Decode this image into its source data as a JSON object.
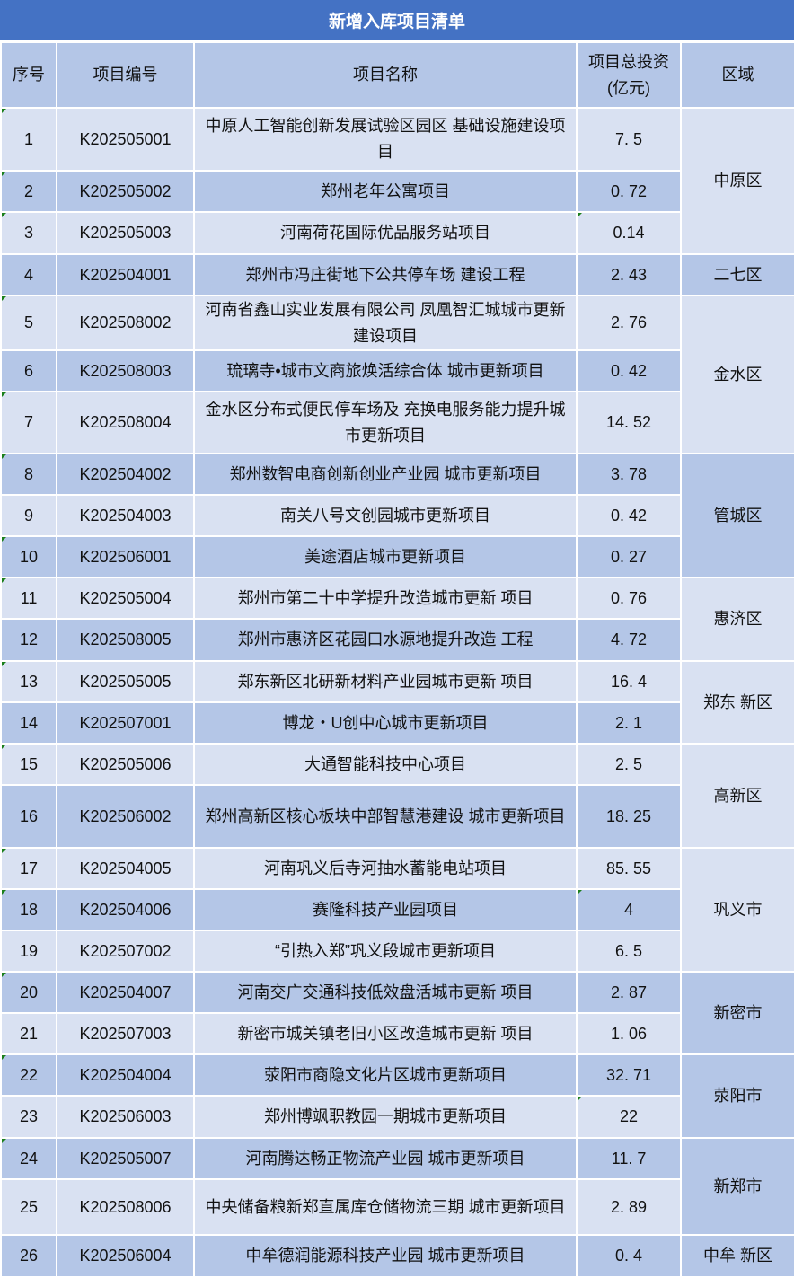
{
  "title": "新增入库项目清单",
  "headers": [
    "序号",
    "项目编号",
    "项目名称",
    "项目总投资\n(亿元)",
    "区域"
  ],
  "header_invest_line1": "项目总投资",
  "header_invest_line2": "(亿元)",
  "colors": {
    "title_bg": "#4472C4",
    "dark_row": "#B4C6E7",
    "light_row": "#D9E1F2"
  },
  "rows": [
    {
      "no": "1",
      "code": "K202505001",
      "name": "中原人工智能创新发展试验区园区 基础设施建设项目",
      "invest": "7. 5"
    },
    {
      "no": "2",
      "code": "K202505002",
      "name": "郑州老年公寓项目",
      "invest": "0. 72"
    },
    {
      "no": "3",
      "code": "K202505003",
      "name": "河南荷花国际优品服务站项目",
      "invest": "0.14"
    },
    {
      "no": "4",
      "code": "K202504001",
      "name": "郑州市冯庄街地下公共停车场 建设工程",
      "invest": "2. 43"
    },
    {
      "no": "5",
      "code": "K202508002",
      "name": "河南省鑫山实业发展有限公司 凤凰智汇城城市更新建设项目",
      "invest": "2. 76"
    },
    {
      "no": "6",
      "code": "K202508003",
      "name": "琉璃寺•城市文商旅焕活综合体 城市更新项目",
      "invest": "0. 42"
    },
    {
      "no": "7",
      "code": "K202508004",
      "name": "金水区分布式便民停车场及 充换电服务能力提升城市更新项目",
      "invest": "14. 52"
    },
    {
      "no": "8",
      "code": "K202504002",
      "name": "郑州数智电商创新创业产业园 城市更新项目",
      "invest": "3. 78"
    },
    {
      "no": "9",
      "code": "K202504003",
      "name": "南关八号文创园城市更新项目",
      "invest": "0. 42"
    },
    {
      "no": "10",
      "code": "K202506001",
      "name": "美途酒店城市更新项目",
      "invest": "0. 27"
    },
    {
      "no": "11",
      "code": "K202505004",
      "name": "郑州市第二十中学提升改造城市更新 项目",
      "invest": "0. 76"
    },
    {
      "no": "12",
      "code": "K202508005",
      "name": "郑州市惠济区花园口水源地提升改造 工程",
      "invest": "4. 72"
    },
    {
      "no": "13",
      "code": "K202505005",
      "name": "郑东新区北研新材料产业园城市更新 项目",
      "invest": "16. 4"
    },
    {
      "no": "14",
      "code": "K202507001",
      "name": "博龙・U创中心城市更新项目",
      "invest": "2. 1"
    },
    {
      "no": "15",
      "code": "K202505006",
      "name": "大通智能科技中心项目",
      "invest": "2. 5"
    },
    {
      "no": "16",
      "code": "K202506002",
      "name": "郑州高新区核心板块中部智慧港建设 城市更新项目",
      "invest": "18. 25"
    },
    {
      "no": "17",
      "code": "K202504005",
      "name": "河南巩义后寺河抽水蓄能电站项目",
      "invest": "85. 55"
    },
    {
      "no": "18",
      "code": "K202504006",
      "name": "赛隆科技产业园项目",
      "invest": "4"
    },
    {
      "no": "19",
      "code": "K202507002",
      "name": "“引热入郑”巩义段城市更新项目",
      "invest": "6. 5"
    },
    {
      "no": "20",
      "code": "K202504007",
      "name": "河南交广交通科技低效盘活城市更新 项目",
      "invest": "2. 87"
    },
    {
      "no": "21",
      "code": "K202507003",
      "name": "新密市城关镇老旧小区改造城市更新 项目",
      "invest": "1. 06"
    },
    {
      "no": "22",
      "code": "K202504004",
      "name": "荥阳市商隐文化片区城市更新项目",
      "invest": "32. 71"
    },
    {
      "no": "23",
      "code": "K202506003",
      "name": "郑州博飒职教园一期城市更新项目",
      "invest": "22"
    },
    {
      "no": "24",
      "code": "K202505007",
      "name": "河南腾达畅正物流产业园 城市更新项目",
      "invest": "11. 7"
    },
    {
      "no": "25",
      "code": "K202508006",
      "name": "中央储备粮新郑直属库仓储物流三期 城市更新项目",
      "invest": "2. 89"
    },
    {
      "no": "26",
      "code": "K202506004",
      "name": "中牟德润能源科技产业园 城市更新项目",
      "invest": "0. 4"
    }
  ],
  "regions": [
    {
      "name": "中原区",
      "span": 3,
      "shade": "light"
    },
    {
      "name": "二七区",
      "span": 1,
      "shade": "dark"
    },
    {
      "name": "金水区",
      "span": 3,
      "shade": "light"
    },
    {
      "name": "管城区",
      "span": 3,
      "shade": "dark"
    },
    {
      "name": "惠济区",
      "span": 2,
      "shade": "light"
    },
    {
      "name": "郑东 新区",
      "span": 2,
      "shade": "light"
    },
    {
      "name": "高新区",
      "span": 2,
      "shade": "light"
    },
    {
      "name": "巩义市",
      "span": 3,
      "shade": "light"
    },
    {
      "name": "新密市",
      "span": 2,
      "shade": "dark"
    },
    {
      "name": "荥阳市",
      "span": 2,
      "shade": "dark"
    },
    {
      "name": "新郑市",
      "span": 2,
      "shade": "dark"
    },
    {
      "name": "中牟 新区",
      "span": 1,
      "shade": "dark"
    }
  ]
}
